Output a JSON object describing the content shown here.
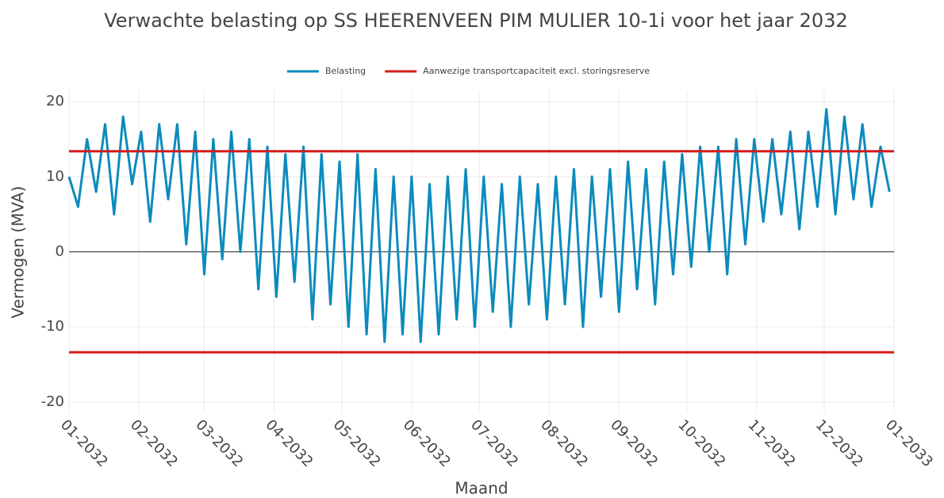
{
  "chart_data": {
    "type": "line",
    "title": "Verwachte belasting op SS HEERENVEEN PIM MULIER 10-1i voor het jaar 2032",
    "x_label": "Maand",
    "y_label": "Vermogen (MVA)",
    "xlim": [
      0,
      366
    ],
    "xticks": [
      {
        "value": 0,
        "label": "01-2032"
      },
      {
        "value": 31,
        "label": "02-2032"
      },
      {
        "value": 60,
        "label": "03-2032"
      },
      {
        "value": 91,
        "label": "04-2032"
      },
      {
        "value": 121,
        "label": "05-2032"
      },
      {
        "value": 152,
        "label": "06-2032"
      },
      {
        "value": 182,
        "label": "07-2032"
      },
      {
        "value": 213,
        "label": "08-2032"
      },
      {
        "value": 244,
        "label": "09-2032"
      },
      {
        "value": 274,
        "label": "10-2032"
      },
      {
        "value": 305,
        "label": "11-2032"
      },
      {
        "value": 335,
        "label": "12-2032"
      },
      {
        "value": 366,
        "label": "01-2033"
      }
    ],
    "ylim": [
      -21.5,
      21.5
    ],
    "yticks": [
      -20,
      -10,
      0,
      10,
      20
    ],
    "grid": true,
    "legend": "top",
    "series": [
      {
        "name": "Belasting",
        "color": "#0b8bbd",
        "x": [
          0,
          4,
          8,
          12,
          16,
          20,
          24,
          28,
          32,
          36,
          40,
          44,
          48,
          52,
          56,
          60,
          64,
          68,
          72,
          76,
          80,
          84,
          88,
          92,
          96,
          100,
          104,
          108,
          112,
          116,
          120,
          124,
          128,
          132,
          136,
          140,
          144,
          148,
          152,
          156,
          160,
          164,
          168,
          172,
          176,
          180,
          184,
          188,
          192,
          196,
          200,
          204,
          208,
          212,
          216,
          220,
          224,
          228,
          232,
          236,
          240,
          244,
          248,
          252,
          256,
          260,
          264,
          268,
          272,
          276,
          280,
          284,
          288,
          292,
          296,
          300,
          304,
          308,
          312,
          316,
          320,
          324,
          328,
          332,
          336,
          340,
          344,
          348,
          352,
          356,
          360,
          364
        ],
        "values": [
          10,
          6,
          15,
          8,
          17,
          5,
          18,
          9,
          16,
          4,
          17,
          7,
          17,
          1,
          16,
          -3,
          15,
          -1,
          16,
          0,
          15,
          -5,
          14,
          -6,
          13,
          -4,
          14,
          -9,
          13,
          -7,
          12,
          -10,
          13,
          -11,
          11,
          -12,
          10,
          -11,
          10,
          -12,
          9,
          -11,
          10,
          -9,
          11,
          -10,
          10,
          -8,
          9,
          -10,
          10,
          -7,
          9,
          -9,
          10,
          -7,
          11,
          -10,
          10,
          -6,
          11,
          -8,
          12,
          -5,
          11,
          -7,
          12,
          -3,
          13,
          -2,
          14,
          0,
          14,
          -3,
          15,
          1,
          15,
          4,
          15,
          5,
          16,
          3,
          16,
          6,
          19,
          5,
          18,
          7,
          17,
          6,
          14,
          8
        ]
      },
      {
        "name": "Aanwezige transportcapaciteit excl. storingsreserve",
        "color": "#d41c1c",
        "x": [
          0,
          366,
          null,
          0,
          366
        ],
        "values": [
          13.4,
          13.4,
          null,
          -13.4,
          -13.4
        ]
      }
    ]
  }
}
